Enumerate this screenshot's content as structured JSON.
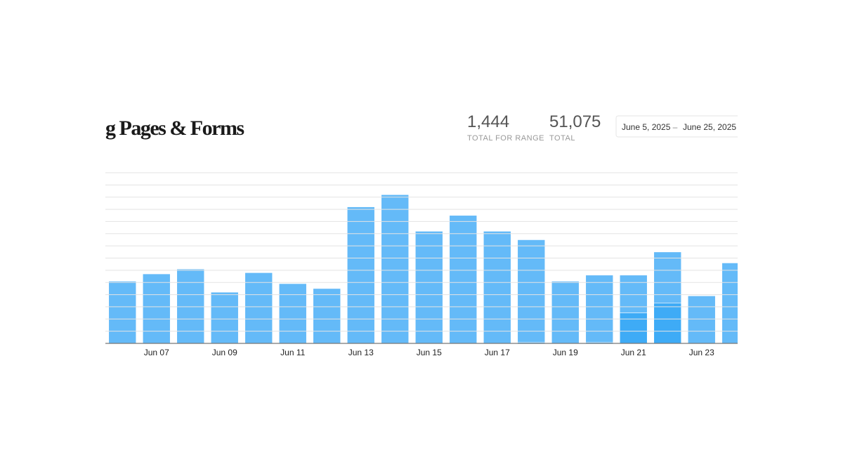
{
  "title": "g Pages & Forms",
  "stats": [
    {
      "value": "1,444",
      "label": "TOTAL FOR RANGE"
    },
    {
      "value": "51,075",
      "label": "TOTAL"
    }
  ],
  "date_range": {
    "start": "June 5, 2025",
    "separator": "–",
    "end": "June 25, 2025"
  },
  "chart_data": {
    "type": "stacked_bar",
    "categories": [
      null,
      "Jun 07",
      null,
      "Jun 09",
      null,
      "Jun 11",
      null,
      "Jun 13",
      null,
      "Jun 15",
      null,
      "Jun 17",
      null,
      "Jun 19",
      null,
      "Jun 21",
      null,
      "Jun 23",
      null
    ],
    "series": [
      {
        "color": "#3eabf6",
        "values": [
          0,
          0,
          0,
          0,
          0,
          0,
          0,
          0,
          0,
          0,
          0,
          0,
          1,
          0,
          1,
          25,
          33,
          0,
          0
        ]
      },
      {
        "color": "#64baf8",
        "values": [
          51,
          57,
          61,
          42,
          58,
          49,
          45,
          112,
          122,
          92,
          105,
          92,
          84,
          51,
          55,
          31,
          42,
          39,
          66
        ]
      }
    ],
    "ylim": [
      0,
      140
    ],
    "yticks": [
      0,
      10,
      20,
      30,
      40,
      50,
      60,
      70,
      80,
      90,
      100,
      110,
      120,
      130,
      140
    ],
    "grid": true
  }
}
